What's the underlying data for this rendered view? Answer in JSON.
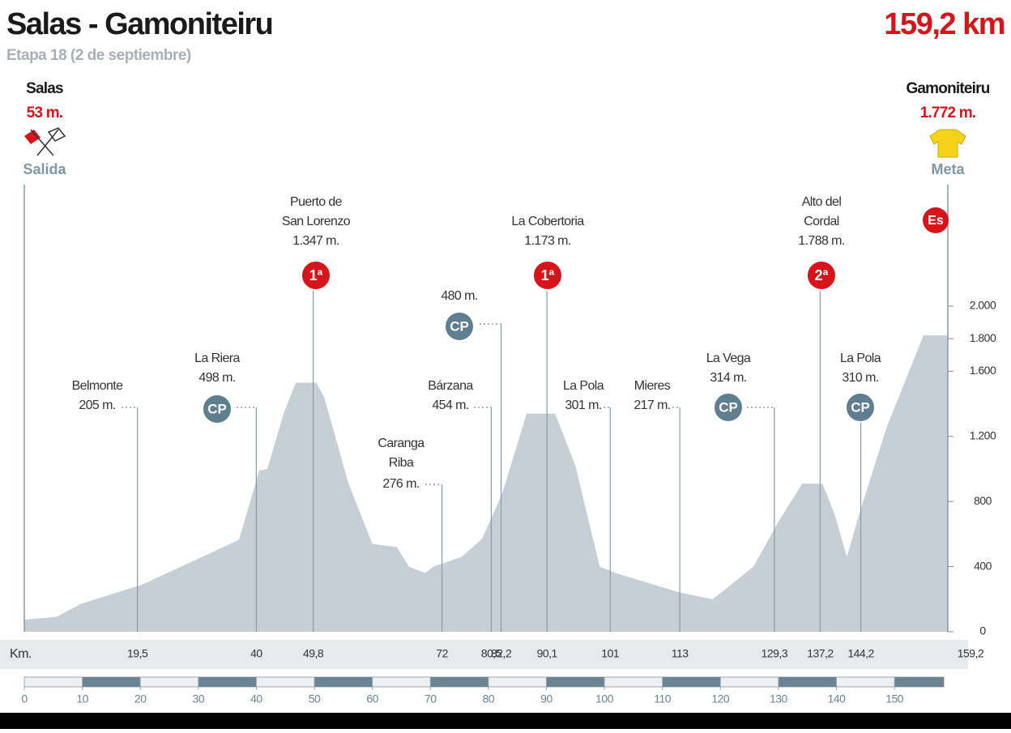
{
  "chart_data": {
    "type": "area",
    "title": "Salas - Gamoniteiru",
    "distance": "159,2 km",
    "subtitle": "Etapa 18 (2 de septiembre)",
    "start": {
      "name": "Salas",
      "altitude": "53 m.",
      "label": "Salida"
    },
    "finish": {
      "name": "Gamoniteiru",
      "altitude": "1.772 m.",
      "label": "Meta",
      "badge": "Es",
      "km": 159.2,
      "km_label": "159,2"
    },
    "x_axis_label": "Km.",
    "color": "#c6cfd6",
    "x": [
      0,
      5.6,
      9.8,
      20.3,
      30.7,
      37,
      40.5,
      41.9,
      44.7,
      46.8,
      50.3,
      51.7,
      55.9,
      60,
      64.2,
      66.3,
      69.1,
      70.5,
      75.4,
      78.9,
      82.4,
      86.6,
      91.5,
      95,
      99.2,
      102,
      113.1,
      118.7,
      125.7,
      129.9,
      134.1,
      137.6,
      139.7,
      141.8,
      143.9,
      148.7,
      155,
      159.2
    ],
    "values": [
      74,
      92,
      172,
      290,
      460,
      565,
      990,
      1000,
      1340,
      1530,
      1530,
      1440,
      910,
      540,
      520,
      400,
      360,
      400,
      460,
      570,
      850,
      1340,
      1340,
      1020,
      400,
      360,
      240,
      200,
      400,
      670,
      910,
      910,
      720,
      460,
      720,
      1260,
      1820,
      1820
    ],
    "xlim": [
      0,
      159.2
    ],
    "xticks": [
      0,
      10,
      20,
      30,
      40,
      50,
      60,
      70,
      80,
      90,
      100,
      110,
      120,
      130,
      140,
      150
    ],
    "ylim": [
      0,
      2000
    ],
    "yticks": [
      0,
      400,
      800,
      {
        "value": 1200,
        "label": "1.200"
      },
      {
        "value": 1600,
        "label": "1.600"
      },
      {
        "value": 1800,
        "label": "1.800"
      },
      {
        "value": 2000,
        "label": "2.000"
      }
    ],
    "waypoints": [
      {
        "name": [
          "Belmonte"
        ],
        "altitude": "205 m.",
        "km": 19.5,
        "km_label": "19,5"
      },
      {
        "name": [
          "La Riera"
        ],
        "altitude": "498 m.",
        "badge": "CP",
        "km": 40,
        "km_label": "40"
      },
      {
        "name": [
          "Puerto de",
          "San Lorenzo"
        ],
        "altitude": "1.347 m.",
        "badge": "1ª",
        "km": 49.8,
        "km_label": "49,8"
      },
      {
        "name": [
          "Caranga",
          "Riba"
        ],
        "altitude": "276 m.",
        "km": 72,
        "km_label": "72"
      },
      {
        "name": [
          "Bárzana"
        ],
        "altitude": "454 m.",
        "km": 80.5,
        "km_label": "80,5"
      },
      {
        "name": [],
        "altitude": "480 m.",
        "badge": "CP",
        "km": 82.2,
        "km_label": "82,2"
      },
      {
        "name": [
          "La Cobertoria"
        ],
        "altitude": "1.173 m.",
        "badge": "1ª",
        "km": 90.1,
        "km_label": "90,1"
      },
      {
        "name": [
          "La Pola"
        ],
        "altitude": "301 m.",
        "km": 101,
        "km_label": "101"
      },
      {
        "name": [
          "Mieres"
        ],
        "altitude": "217 m.",
        "km": 113,
        "km_label": "113"
      },
      {
        "name": [
          "La Vega"
        ],
        "altitude": "314 m.",
        "badge": "CP",
        "km": 129.3,
        "km_label": "129,3"
      },
      {
        "name": [
          "Alto del",
          "Cordal"
        ],
        "altitude": "1.788 m.",
        "badge": "2ª",
        "km": 137.2,
        "km_label": "137,2"
      },
      {
        "name": [
          "La Pola"
        ],
        "altitude": "310 m.",
        "badge": "CP",
        "km": 144.2,
        "km_label": "144,2"
      }
    ]
  }
}
